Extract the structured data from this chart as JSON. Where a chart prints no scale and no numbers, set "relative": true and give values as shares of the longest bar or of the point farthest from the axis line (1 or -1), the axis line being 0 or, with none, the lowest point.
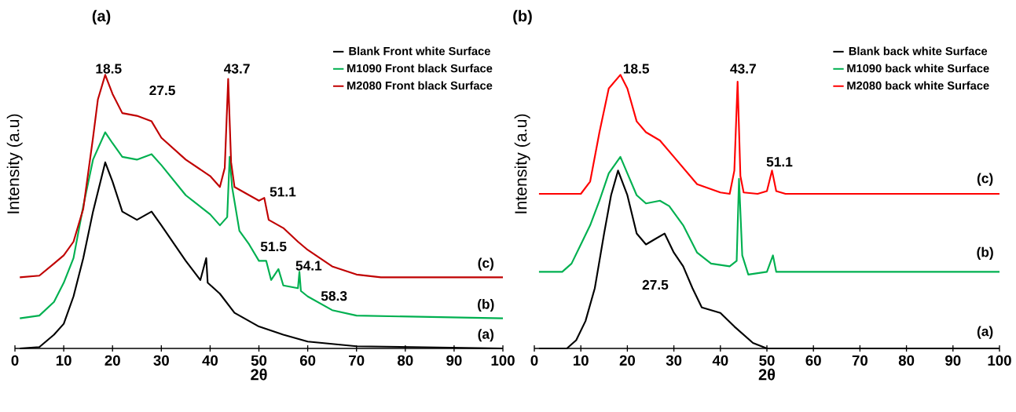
{
  "chart_data": [
    {
      "type": "line",
      "title": "(a)",
      "xlabel": "2θ",
      "ylabel": "Intensity (a.u)",
      "relative": true,
      "xlim": [
        0,
        100
      ],
      "xticks": [
        0,
        10,
        20,
        30,
        40,
        50,
        60,
        70,
        80,
        90,
        100
      ],
      "legend": "top right",
      "line_style": "solid",
      "series": [
        {
          "name": "Blank  Front white Surface",
          "color": "#000000",
          "x": [
            1,
            5,
            8,
            10,
            12,
            14,
            16,
            18.5,
            20,
            22,
            25,
            28,
            30,
            35,
            38,
            39.2,
            39.5,
            42,
            45,
            50,
            55,
            60,
            70,
            100
          ],
          "values": [
            0,
            0.005,
            0.05,
            0.09,
            0.19,
            0.33,
            0.5,
            0.68,
            0.61,
            0.5,
            0.47,
            0.5,
            0.45,
            0.32,
            0.25,
            0.33,
            0.24,
            0.2,
            0.13,
            0.08,
            0.05,
            0.025,
            0.008,
            0
          ]
        },
        {
          "name": "M1090 Front black Surface",
          "color": "#00b050",
          "x": [
            1,
            5,
            8,
            10,
            12,
            14,
            16,
            18.5,
            20,
            22,
            25,
            28,
            30,
            35,
            40,
            42,
            43.5,
            44,
            44.5,
            46,
            48,
            50,
            51.5,
            52.5,
            54,
            55,
            58,
            58.3,
            58.6,
            60,
            65,
            70,
            100
          ],
          "values": [
            0.11,
            0.12,
            0.17,
            0.24,
            0.33,
            0.52,
            0.69,
            0.79,
            0.75,
            0.7,
            0.69,
            0.71,
            0.67,
            0.56,
            0.49,
            0.45,
            0.48,
            0.7,
            0.59,
            0.43,
            0.38,
            0.32,
            0.32,
            0.25,
            0.29,
            0.23,
            0.22,
            0.28,
            0.21,
            0.19,
            0.14,
            0.12,
            0.11
          ]
        },
        {
          "name": "M2080 Front black Surface",
          "color": "#c00000",
          "x": [
            1,
            5,
            8,
            10,
            12,
            14,
            16,
            17,
            18.5,
            20,
            22,
            25,
            28,
            30,
            35,
            40,
            42,
            43,
            43.7,
            44.3,
            45,
            48,
            50,
            51.1,
            52,
            55,
            58,
            60,
            65,
            70,
            75,
            100
          ],
          "values": [
            0.26,
            0.266,
            0.31,
            0.34,
            0.39,
            0.51,
            0.77,
            0.91,
            1.0,
            0.93,
            0.86,
            0.85,
            0.83,
            0.77,
            0.69,
            0.63,
            0.59,
            0.66,
            0.985,
            0.68,
            0.59,
            0.56,
            0.54,
            0.55,
            0.47,
            0.44,
            0.39,
            0.36,
            0.3,
            0.27,
            0.26,
            0.26
          ]
        }
      ],
      "annotations": [
        "18.5",
        "27.5",
        "43.7",
        "51.1",
        "51.5",
        "54.1",
        "58.3",
        "(c)",
        "(b)",
        "(a)"
      ]
    },
    {
      "type": "line",
      "title": "(b)",
      "xlabel": "2θ",
      "ylabel": "Intensity (a.u)",
      "relative": true,
      "xlim": [
        0,
        100
      ],
      "xticks": [
        0,
        10,
        20,
        30,
        40,
        50,
        60,
        70,
        80,
        90,
        100
      ],
      "legend": "top right",
      "line_style": "solid",
      "series": [
        {
          "name": "Blank  back white Surface",
          "color": "#000000",
          "x": [
            1,
            7,
            9,
            11,
            13,
            15,
            16.5,
            18,
            20,
            22,
            24,
            26,
            28,
            30,
            32,
            34,
            36,
            40,
            43,
            47,
            50,
            100
          ],
          "values": [
            0,
            0,
            0.03,
            0.1,
            0.22,
            0.42,
            0.56,
            0.65,
            0.56,
            0.42,
            0.38,
            0.4,
            0.42,
            0.35,
            0.3,
            0.22,
            0.15,
            0.13,
            0.08,
            0.02,
            0,
            0
          ]
        },
        {
          "name": "M1090 back white Surface",
          "color": "#00b050",
          "x": [
            1,
            6,
            8,
            10,
            12,
            14,
            16,
            18.5,
            20,
            22,
            24,
            27,
            29,
            32,
            35,
            38,
            42,
            43.5,
            44,
            44.7,
            46,
            50,
            51.3,
            52,
            55,
            100
          ],
          "values": [
            0.28,
            0.28,
            0.31,
            0.38,
            0.45,
            0.54,
            0.64,
            0.7,
            0.64,
            0.56,
            0.53,
            0.54,
            0.52,
            0.45,
            0.35,
            0.31,
            0.3,
            0.32,
            0.62,
            0.34,
            0.27,
            0.28,
            0.34,
            0.28,
            0.28,
            0.28
          ]
        },
        {
          "name": "M2080 back white Surface",
          "color": "#ff0000",
          "x": [
            1,
            10,
            12,
            14,
            16,
            18.5,
            20,
            22,
            24,
            27,
            30,
            35,
            40,
            42,
            43,
            43.7,
            44.3,
            45,
            48,
            50,
            51.1,
            52,
            54,
            100
          ],
          "values": [
            0.565,
            0.565,
            0.61,
            0.79,
            0.95,
            1.0,
            0.95,
            0.83,
            0.79,
            0.76,
            0.7,
            0.6,
            0.57,
            0.565,
            0.65,
            0.975,
            0.63,
            0.57,
            0.565,
            0.575,
            0.65,
            0.575,
            0.565,
            0.565
          ]
        }
      ],
      "annotations": [
        "18.5",
        "43.7",
        "51.1",
        "27.5",
        "(c)",
        "(b)",
        "(a)"
      ]
    }
  ]
}
